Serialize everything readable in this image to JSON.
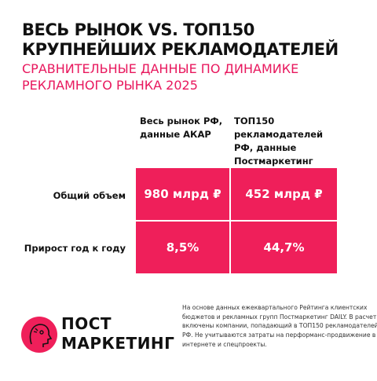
{
  "header": {
    "title": [
      "ВЕСЬ РЫНОК VS. ТОП150",
      "КРУПНЕЙШИХ РЕКЛАМОДАТЕЛЕЙ"
    ],
    "subtitle": [
      "СРАВНИТЕЛЬНЫЕ ДАННЫЕ ПО ДИНАМИКЕ",
      "РЕКЛАМНОГО РЫНКА 2025"
    ]
  },
  "table": {
    "columns": [
      [
        "Весь рынок РФ,",
        "данные АКАР"
      ],
      [
        "ТОП150",
        "рекламодателей",
        "РФ, данные",
        "Постмаркетинг"
      ]
    ],
    "rows": [
      [
        "Общий объем",
        "980 млрд ₽",
        "452 млрд ₽"
      ],
      [
        "Прирост год к году",
        "8,5%",
        "44,7%"
      ]
    ]
  },
  "logo": [
    "ПОСТ",
    "МАРКЕТИНГ"
  ],
  "footnote": [
    "На основе данных ежеквартального Рейтинга клиентских",
    "бюджетов и рекламных групп Постмаркетинг DAILY. В расчет",
    "включены компании, попадающий в ТОП150 рекламодателей",
    "РФ. Не учитываются затраты на перформанс-продвижение в",
    "интернете и спецпроекты."
  ]
}
